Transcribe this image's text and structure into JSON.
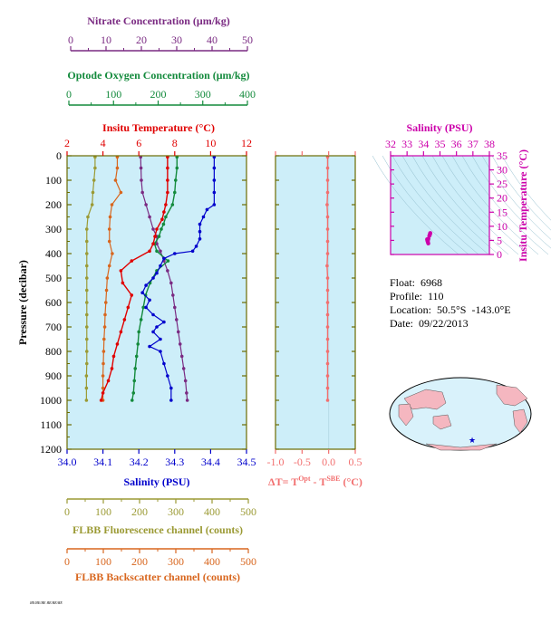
{
  "colors": {
    "nitrate": "#7a2a82",
    "oxygen": "#138a3c",
    "temperature": "#e00000",
    "salinity": "#0000cc",
    "fluorescence": "#9b9a34",
    "backscatter": "#d8661e",
    "delta": "#f26f6f",
    "ts": "#cc00aa",
    "plot_bg": "#cdeef9",
    "axis_olive": "#6b6b00"
  },
  "info": {
    "float": "Float:  6968",
    "profile": "Profile:  110",
    "location": "Location:  50.5°S  -143.0°E",
    "date": "Date:  09/22/2013"
  },
  "footer_text": "ЯЕ/ЯЕ/ЯЕ ЯЕ/ЯЕ/ЯЕ",
  "chart_data": [
    {
      "type": "line",
      "pressure_label": "Pressure (decibar)",
      "pressure_ticks": [
        "0",
        "100",
        "200",
        "300",
        "400",
        "500",
        "600",
        "700",
        "800",
        "900",
        "1000",
        "1100",
        "1200"
      ],
      "ylim": [
        0,
        1200
      ],
      "axes": {
        "nitrate": {
          "label": "Nitrate Concentration (μm/kg)",
          "ticks": [
            "0",
            "10",
            "20",
            "30",
            "40",
            "50"
          ],
          "range": [
            0,
            50
          ]
        },
        "oxygen": {
          "label": "Optode Oxygen Concentration (μm/kg)",
          "ticks": [
            "0",
            "100",
            "200",
            "300",
            "400"
          ],
          "range": [
            0,
            400
          ]
        },
        "temperature": {
          "label": "Insitu Temperature (°C)",
          "ticks": [
            "2",
            "4",
            "6",
            "8",
            "10",
            "12"
          ],
          "range": [
            2,
            12
          ]
        },
        "salinity": {
          "label": "Salinity (PSU)",
          "ticks": [
            "34.0",
            "34.1",
            "34.2",
            "34.3",
            "34.4",
            "34.5"
          ],
          "range": [
            34.0,
            34.5
          ]
        },
        "fluorescence": {
          "label": "FLBB Fluorescence channel (counts)",
          "ticks": [
            "0",
            "100",
            "200",
            "300",
            "400",
            "500"
          ],
          "range": [
            0,
            500
          ]
        },
        "backscatter": {
          "label": "FLBB Backscatter channel (counts)",
          "ticks": [
            "0",
            "100",
            "200",
            "300",
            "400",
            "500"
          ],
          "range": [
            0,
            500
          ]
        }
      },
      "series": {
        "temperature": {
          "p": [
            5,
            50,
            100,
            150,
            200,
            230,
            260,
            300,
            330,
            360,
            390,
            430,
            470,
            520,
            570,
            620,
            670,
            720,
            770,
            820,
            870,
            920,
            970,
            1000
          ],
          "v": [
            7.6,
            7.6,
            7.6,
            7.6,
            7.5,
            7.4,
            7.3,
            7.0,
            6.9,
            6.8,
            6.6,
            5.6,
            5.0,
            5.1,
            5.6,
            5.4,
            5.2,
            5.0,
            4.8,
            4.6,
            4.5,
            4.3,
            4.0,
            3.9
          ]
        },
        "salinity": {
          "p": [
            5,
            50,
            100,
            150,
            200,
            220,
            250,
            280,
            310,
            340,
            370,
            390,
            400,
            420,
            450,
            480,
            500,
            530,
            560,
            590,
            620,
            650,
            680,
            700,
            720,
            750,
            780,
            800,
            850,
            900,
            950,
            1000
          ],
          "v": [
            34.41,
            34.41,
            34.41,
            34.41,
            34.41,
            34.39,
            34.38,
            34.37,
            34.37,
            34.37,
            34.36,
            34.35,
            34.3,
            34.27,
            34.26,
            34.25,
            34.24,
            34.22,
            34.21,
            34.23,
            34.22,
            34.24,
            34.27,
            34.25,
            34.24,
            34.26,
            34.23,
            34.26,
            34.27,
            34.28,
            34.29,
            34.29
          ]
        },
        "oxygen": {
          "p": [
            5,
            50,
            100,
            150,
            200,
            250,
            280,
            300,
            330,
            360,
            390,
            430,
            470,
            520,
            570,
            620,
            670,
            720,
            770,
            820,
            870,
            920,
            970,
            1000
          ],
          "v": [
            245,
            245,
            242,
            240,
            235,
            220,
            215,
            210,
            205,
            195,
            200,
            225,
            200,
            185,
            175,
            170,
            165,
            160,
            158,
            155,
            152,
            150,
            148,
            145
          ]
        },
        "nitrate": {
          "p": [
            5,
            50,
            100,
            150,
            200,
            250,
            300,
            330,
            360,
            390,
            430,
            470,
            520,
            570,
            620,
            670,
            720,
            770,
            820,
            870,
            920,
            970,
            1000
          ],
          "v": [
            20.5,
            20.6,
            20.7,
            21.0,
            22.0,
            23.0,
            24.0,
            25.0,
            25.0,
            26.0,
            27.0,
            28.0,
            29.0,
            29.5,
            30.0,
            30.5,
            31.0,
            31.5,
            32.0,
            32.5,
            33.0,
            33.3,
            33.5
          ]
        },
        "fluorescence": {
          "p": [
            5,
            50,
            100,
            150,
            200,
            250,
            300,
            350,
            400,
            450,
            500,
            550,
            600,
            650,
            700,
            750,
            800,
            850,
            900,
            950,
            1000
          ],
          "v": [
            78,
            78,
            75,
            72,
            70,
            58,
            55,
            55,
            55,
            55,
            55,
            55,
            55,
            55,
            55,
            55,
            55,
            55,
            54,
            54,
            54
          ]
        },
        "backscatter": {
          "p": [
            5,
            50,
            100,
            150,
            200,
            250,
            300,
            350,
            400,
            450,
            500,
            550,
            600,
            650,
            700,
            750,
            800,
            850,
            900,
            950,
            1000
          ],
          "v": [
            140,
            140,
            135,
            150,
            125,
            120,
            118,
            118,
            126,
            118,
            112,
            110,
            108,
            106,
            105,
            103,
            102,
            101,
            100,
            100,
            100
          ]
        }
      }
    },
    {
      "type": "line",
      "xlabel": "ΔT= T^Opt - T^SBE (°C)",
      "ticks": [
        "-1.0",
        "-0.5",
        "0.0",
        "0.5"
      ],
      "xlim": [
        -1.0,
        0.5
      ],
      "ylim": [
        0,
        1200
      ],
      "series": {
        "p": [
          5,
          50,
          100,
          150,
          200,
          250,
          300,
          350,
          400,
          450,
          500,
          550,
          600,
          650,
          700,
          750,
          800,
          850,
          900,
          950,
          1000
        ],
        "v": [
          -0.02,
          -0.02,
          -0.02,
          -0.02,
          -0.03,
          -0.02,
          -0.02,
          -0.02,
          -0.02,
          -0.03,
          -0.02,
          -0.02,
          -0.02,
          -0.02,
          -0.02,
          -0.02,
          -0.02,
          -0.02,
          -0.02,
          -0.02,
          -0.02
        ]
      }
    },
    {
      "type": "scatter",
      "xlabel": "Salinity (PSU)",
      "ylabel": "Insitu Temperature (°C)",
      "xticks": [
        "32",
        "33",
        "34",
        "35",
        "36",
        "37",
        "38"
      ],
      "yticks": [
        "0",
        "5",
        "10",
        "15",
        "20",
        "25",
        "30",
        "35"
      ],
      "xlim": [
        32,
        38
      ],
      "ylim": [
        0,
        35
      ],
      "points": {
        "s": [
          34.41,
          34.4,
          34.4,
          34.38,
          34.37,
          34.35,
          34.3,
          34.27,
          34.24,
          34.22,
          34.23,
          34.25,
          34.27,
          34.29
        ],
        "t": [
          7.6,
          7.5,
          7.3,
          7.0,
          6.8,
          6.6,
          5.6,
          5.0,
          5.1,
          5.4,
          5.0,
          4.6,
          4.3,
          3.9
        ]
      }
    }
  ]
}
